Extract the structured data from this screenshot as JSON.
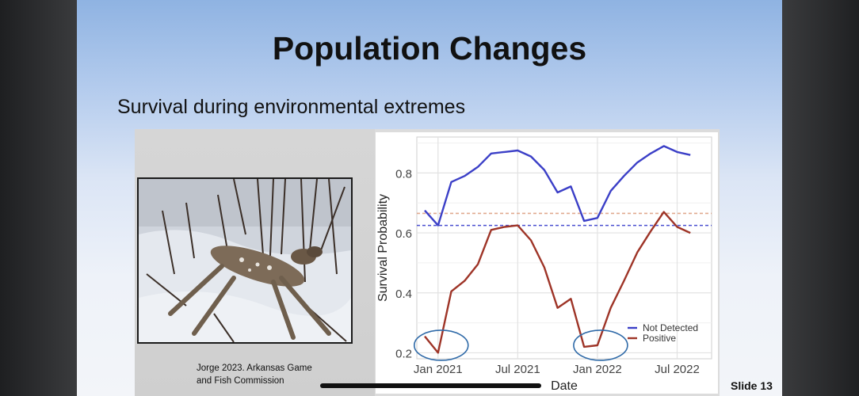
{
  "slide": {
    "title": "Population Changes",
    "subtitle": "Survival during environmental extremes",
    "credit": "Jorge 2023. Arkansas Game\nand Fish Commission",
    "slide_number": "Slide 13"
  },
  "chart_data": {
    "type": "line",
    "xlabel": "Date",
    "ylabel": "Survival Probability",
    "x_ticks": [
      "Jan 2021",
      "Jul 2021",
      "Jan 2022",
      "Jul 2022"
    ],
    "y_ticks": [
      "0.2",
      "0.4",
      "0.6",
      "0.8"
    ],
    "ylim": [
      0.18,
      0.92
    ],
    "grid": true,
    "legend_position": "bottom-right",
    "x": [
      "2020-12",
      "2021-01",
      "2021-02",
      "2021-03",
      "2021-04",
      "2021-05",
      "2021-06",
      "2021-07",
      "2021-08",
      "2021-09",
      "2021-10",
      "2021-11",
      "2021-12",
      "2022-01",
      "2022-02",
      "2022-03",
      "2022-04",
      "2022-05",
      "2022-06",
      "2022-07",
      "2022-08",
      "2022-09"
    ],
    "series": [
      {
        "name": "Not Detected",
        "color": "#3b3fc7",
        "values": [
          0.675,
          0.625,
          0.77,
          0.79,
          0.82,
          0.865,
          0.87,
          0.875,
          0.855,
          0.81,
          0.735,
          0.755,
          0.64,
          0.65,
          0.74,
          0.79,
          0.835,
          0.865,
          0.89,
          0.87,
          0.86,
          null
        ]
      },
      {
        "name": "Positive",
        "color": "#9e3427",
        "values": [
          0.255,
          0.2,
          0.405,
          0.44,
          0.495,
          0.61,
          0.62,
          0.625,
          0.575,
          0.485,
          0.35,
          0.38,
          0.22,
          0.225,
          0.35,
          0.44,
          0.535,
          0.605,
          0.67,
          0.62,
          0.6,
          null
        ]
      }
    ],
    "reference_lines": [
      {
        "value": 0.665,
        "color": "#e0a98f",
        "style": "dashed"
      },
      {
        "value": 0.625,
        "color": "#4a4fd0",
        "style": "dashed"
      }
    ],
    "highlight_circles_at": [
      "2021-01",
      "2022-01"
    ],
    "highlight_color": "#2f6aa8"
  }
}
